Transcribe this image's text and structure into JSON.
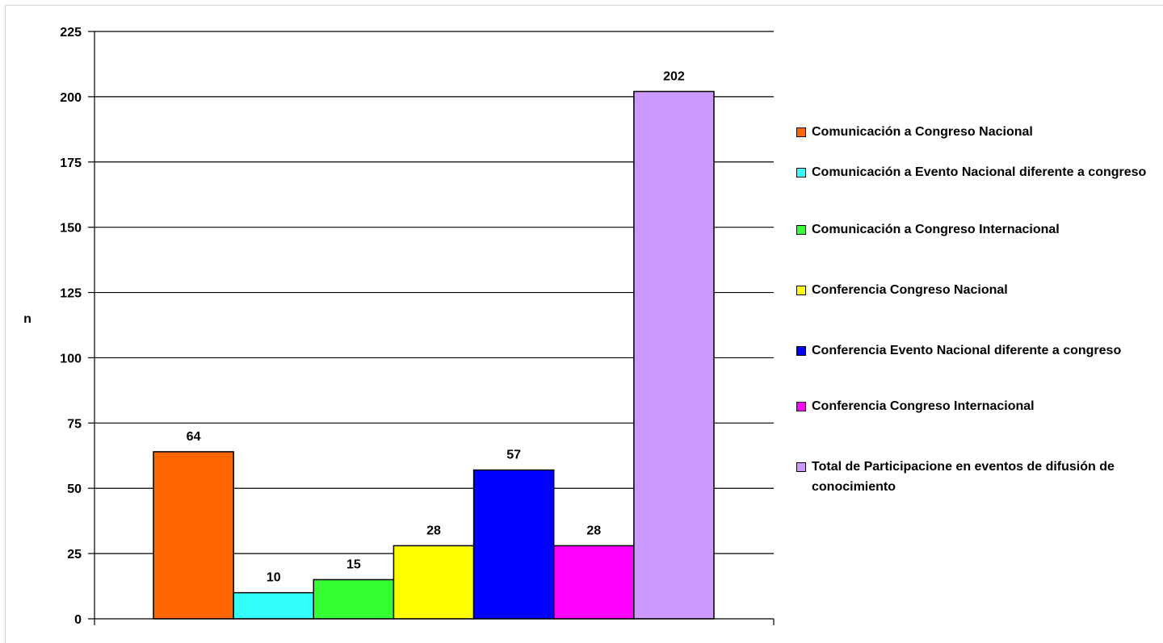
{
  "chart_data": {
    "type": "bar",
    "title": "",
    "xlabel": "",
    "ylabel": "n",
    "ylim": [
      0,
      225
    ],
    "yticks": [
      0,
      25,
      50,
      75,
      100,
      125,
      150,
      175,
      200,
      225
    ],
    "grid": true,
    "legend_position": "right",
    "series": [
      {
        "name": "Comunicación a Congreso Nacional",
        "value": 64,
        "color": "#FF6600"
      },
      {
        "name": "Comunicación a Evento Nacional diferente a congreso",
        "value": 10,
        "color": "#33FFFF"
      },
      {
        "name": "Comunicación a Congreso Internacional",
        "value": 15,
        "color": "#33FF33"
      },
      {
        "name": "Conferencia Congreso Nacional",
        "value": 28,
        "color": "#FFFF00"
      },
      {
        "name": "Conferencia Evento Nacional diferente a congreso",
        "value": 57,
        "color": "#0000FF"
      },
      {
        "name": "Conferencia Congreso Internacional",
        "value": 28,
        "color": "#FF00FF"
      },
      {
        "name": "Total de Participacione en eventos de difusión de conocimiento",
        "value": 202,
        "color": "#CC99FF"
      }
    ]
  }
}
